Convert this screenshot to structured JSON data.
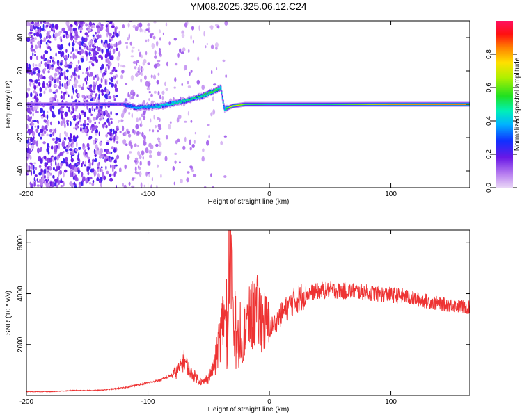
{
  "title": "YM08.2025.325.06.12.C24",
  "chart_data": [
    {
      "type": "heatmap",
      "name": "spectrogram",
      "xlabel": "Height of straight line (km)",
      "ylabel": "Frequency (Hz)",
      "xlim": [
        -200,
        165
      ],
      "ylim": [
        -50,
        50
      ],
      "xticks": [
        -200,
        -100,
        0,
        100
      ],
      "yticks": [
        -40,
        -20,
        0,
        20,
        40
      ],
      "colorbar": {
        "label": "Normalized spectral amplitude",
        "range": [
          0,
          1
        ],
        "ticks": [
          "0.0",
          "0.2",
          "0.4",
          "0.6",
          "0.8"
        ],
        "tick_values": [
          0.0,
          0.2,
          0.4,
          0.6,
          0.8
        ]
      },
      "ridge": {
        "description_points_x": [
          -200,
          -160,
          -120,
          -110,
          -90,
          -70,
          -55,
          -45,
          -40,
          -37,
          -30,
          -20,
          -10,
          0,
          50,
          100,
          165
        ],
        "frequency_hz": [
          0,
          0,
          0,
          -2,
          -1,
          2,
          5,
          8,
          10,
          -3,
          -1,
          0,
          0,
          0,
          0,
          0,
          0
        ],
        "peak_amplitude": [
          0.25,
          0.25,
          0.3,
          0.4,
          0.45,
          0.5,
          0.55,
          0.6,
          0.5,
          0.45,
          0.8,
          0.6,
          0.55,
          0.5,
          0.55,
          0.85,
          0.9
        ]
      }
    },
    {
      "type": "line",
      "name": "snr",
      "xlabel": "Height of straight line (km)",
      "ylabel": "SNR (10 * v/v)",
      "xlim": [
        -200,
        165
      ],
      "ylim": [
        0,
        6500
      ],
      "xticks": [
        -200,
        -100,
        0,
        100
      ],
      "yticks": [
        2000,
        4000,
        6000
      ],
      "color": "#ee3333",
      "series": [
        {
          "name": "SNR",
          "x": [
            -200,
            -180,
            -160,
            -140,
            -120,
            -100,
            -90,
            -80,
            -75,
            -70,
            -65,
            -60,
            -55,
            -50,
            -45,
            -40,
            -37,
            -35,
            -32,
            -30,
            -28,
            -25,
            -20,
            -15,
            -10,
            0,
            10,
            20,
            30,
            40,
            50,
            60,
            70,
            80,
            90,
            100,
            110,
            120,
            130,
            140,
            150,
            165
          ],
          "y": [
            150,
            150,
            200,
            200,
            300,
            500,
            600,
            800,
            1000,
            1400,
            900,
            700,
            500,
            700,
            1200,
            2500,
            3300,
            1800,
            6500,
            3600,
            1800,
            1900,
            2600,
            3100,
            3300,
            2600,
            3200,
            3700,
            4000,
            4100,
            4150,
            4100,
            4100,
            4050,
            4000,
            3950,
            3900,
            3800,
            3700,
            3600,
            3550,
            3450
          ]
        }
      ]
    }
  ]
}
